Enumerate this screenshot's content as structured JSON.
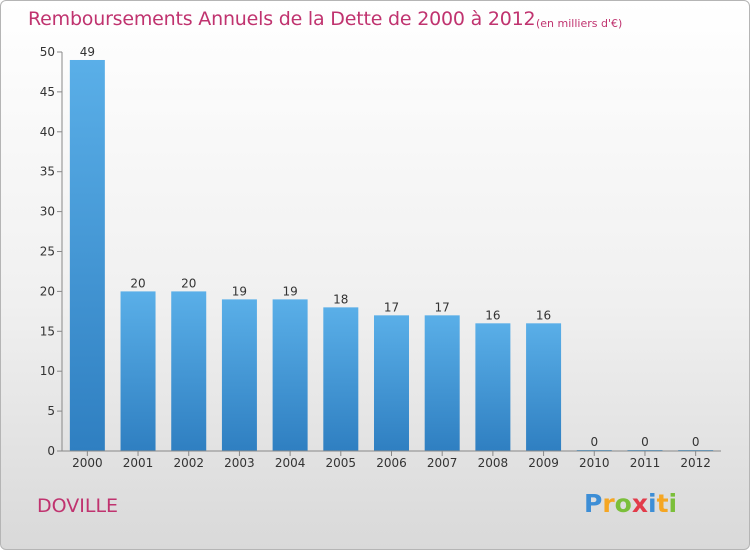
{
  "chart_data": {
    "type": "bar",
    "title": "Remboursements Annuels de la Dette de 2000 à 2012",
    "subtitle": "(en milliers d'€)",
    "categories": [
      "2000",
      "2001",
      "2002",
      "2003",
      "2004",
      "2005",
      "2006",
      "2007",
      "2008",
      "2009",
      "2010",
      "2011",
      "2012"
    ],
    "values": [
      49,
      20,
      20,
      19,
      19,
      18,
      17,
      17,
      16,
      16,
      0,
      0,
      0
    ],
    "xlabel": "",
    "ylabel": "",
    "ylim": [
      0,
      50
    ],
    "yticks": [
      0,
      5,
      10,
      15,
      20,
      25,
      30,
      35,
      40,
      45,
      50
    ],
    "grid": false,
    "legend": "none",
    "colors": {
      "bar_light": "#5aafe8",
      "bar_dark": "#2f7fc1",
      "title": "#c0336f",
      "axis": "#888888"
    }
  },
  "commune": "DOVILLE",
  "logo": {
    "letters": [
      "P",
      "r",
      "o",
      "x",
      "i",
      "t",
      "i"
    ],
    "colors": [
      "#3d8ed6",
      "#f5a623",
      "#7bbf3a",
      "#e23b4a",
      "#3d8ed6",
      "#f5a623",
      "#7bbf3a"
    ]
  }
}
